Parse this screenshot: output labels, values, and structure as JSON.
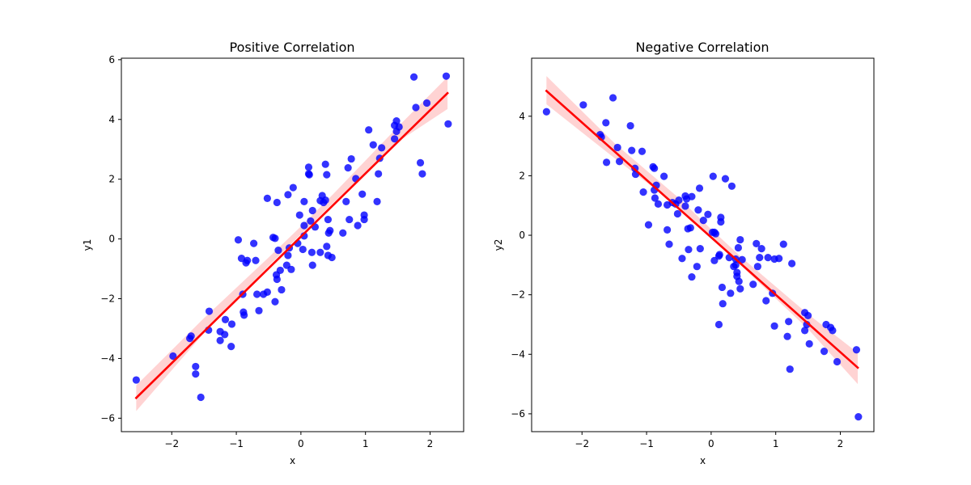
{
  "chart_data": [
    {
      "type": "scatter",
      "title": "Positive Correlation",
      "xlabel": "x",
      "ylabel": "y1",
      "xlim": [
        -2.78,
        2.52
      ],
      "ylim": [
        -6.45,
        6.05
      ],
      "xticks": [
        -2,
        -1,
        0,
        1,
        2
      ],
      "yticks": [
        -6,
        -4,
        -2,
        0,
        2,
        4,
        6
      ],
      "point_color": "#0000ff",
      "line_color": "#ff0000",
      "ci_color": "#ffc0c0",
      "regression_line": {
        "x": [
          -2.55,
          2.27
        ],
        "y": [
          -5.32,
          4.88
        ]
      },
      "confidence_band": [
        {
          "x": -2.55,
          "lo": -5.76,
          "hi": -4.9
        },
        {
          "x": -1.5,
          "lo": -3.15,
          "hi": -2.65
        },
        {
          "x": -0.5,
          "lo": -0.9,
          "hi": -0.62
        },
        {
          "x": 0.0,
          "lo": 0.15,
          "hi": 0.42
        },
        {
          "x": 0.5,
          "lo": 1.2,
          "hi": 1.5
        },
        {
          "x": 1.5,
          "lo": 3.25,
          "hi": 3.75
        },
        {
          "x": 2.27,
          "lo": 4.35,
          "hi": 5.42
        }
      ],
      "points": [
        [
          -2.55,
          -4.72
        ],
        [
          -1.98,
          -3.92
        ],
        [
          -1.72,
          -3.33
        ],
        [
          -1.7,
          -3.25
        ],
        [
          -1.63,
          -4.27
        ],
        [
          -1.63,
          -4.52
        ],
        [
          -1.55,
          -5.3
        ],
        [
          -1.43,
          -3.05
        ],
        [
          -1.42,
          -2.42
        ],
        [
          -1.25,
          -3.4
        ],
        [
          -1.25,
          -3.1
        ],
        [
          -1.18,
          -3.2
        ],
        [
          -1.17,
          -2.7
        ],
        [
          -1.08,
          -3.6
        ],
        [
          -1.07,
          -2.85
        ],
        [
          -0.97,
          -0.03
        ],
        [
          -0.92,
          -0.65
        ],
        [
          -0.9,
          -1.85
        ],
        [
          -0.89,
          -2.45
        ],
        [
          -0.88,
          -2.55
        ],
        [
          -0.85,
          -0.8
        ],
        [
          -0.83,
          -0.72
        ],
        [
          -0.73,
          -0.15
        ],
        [
          -0.7,
          -0.72
        ],
        [
          -0.68,
          -1.85
        ],
        [
          -0.65,
          -2.4
        ],
        [
          -0.58,
          -1.85
        ],
        [
          -0.52,
          -1.78
        ],
        [
          -0.52,
          1.36
        ],
        [
          -0.43,
          0.05
        ],
        [
          -0.4,
          0.02
        ],
        [
          -0.4,
          -2.1
        ],
        [
          -0.38,
          -1.2
        ],
        [
          -0.37,
          -1.35
        ],
        [
          -0.37,
          1.22
        ],
        [
          -0.35,
          -0.38
        ],
        [
          -0.32,
          -1.05
        ],
        [
          -0.3,
          -1.7
        ],
        [
          -0.22,
          -0.88
        ],
        [
          -0.2,
          -0.55
        ],
        [
          -0.2,
          1.48
        ],
        [
          -0.18,
          -0.3
        ],
        [
          -0.15,
          -1.02
        ],
        [
          -0.12,
          1.72
        ],
        [
          -0.05,
          -0.15
        ],
        [
          -0.02,
          0.8
        ],
        [
          0.03,
          -0.35
        ],
        [
          0.05,
          0.1
        ],
        [
          0.05,
          1.25
        ],
        [
          0.05,
          0.45
        ],
        [
          0.12,
          2.4
        ],
        [
          0.12,
          2.18
        ],
        [
          0.13,
          2.15
        ],
        [
          0.15,
          0.6
        ],
        [
          0.17,
          -0.45
        ],
        [
          0.18,
          0.95
        ],
        [
          0.18,
          -0.88
        ],
        [
          0.22,
          0.4
        ],
        [
          0.3,
          1.28
        ],
        [
          0.3,
          -0.45
        ],
        [
          0.33,
          1.45
        ],
        [
          0.35,
          1.22
        ],
        [
          0.38,
          1.3
        ],
        [
          0.38,
          2.5
        ],
        [
          0.4,
          -0.25
        ],
        [
          0.4,
          2.15
        ],
        [
          0.42,
          -0.55
        ],
        [
          0.42,
          0.65
        ],
        [
          0.43,
          0.2
        ],
        [
          0.45,
          0.28
        ],
        [
          0.48,
          -0.62
        ],
        [
          0.65,
          0.2
        ],
        [
          0.7,
          1.25
        ],
        [
          0.73,
          2.38
        ],
        [
          0.75,
          0.65
        ],
        [
          0.78,
          2.68
        ],
        [
          0.85,
          2.02
        ],
        [
          0.88,
          0.45
        ],
        [
          0.95,
          1.5
        ],
        [
          0.98,
          0.8
        ],
        [
          0.98,
          0.65
        ],
        [
          1.05,
          3.65
        ],
        [
          1.12,
          3.15
        ],
        [
          1.18,
          1.25
        ],
        [
          1.2,
          2.18
        ],
        [
          1.22,
          2.7
        ],
        [
          1.25,
          3.05
        ],
        [
          1.45,
          3.35
        ],
        [
          1.45,
          3.8
        ],
        [
          1.48,
          3.95
        ],
        [
          1.48,
          3.6
        ],
        [
          1.52,
          3.75
        ],
        [
          1.75,
          5.42
        ],
        [
          1.78,
          4.4
        ],
        [
          1.85,
          2.55
        ],
        [
          1.88,
          2.18
        ],
        [
          1.95,
          4.55
        ],
        [
          2.25,
          5.45
        ],
        [
          2.28,
          3.85
        ]
      ]
    },
    {
      "type": "scatter",
      "title": "Negative Correlation",
      "xlabel": "x",
      "ylabel": "y2",
      "xlim": [
        -2.78,
        2.52
      ],
      "ylim": [
        -6.6,
        5.95
      ],
      "xticks": [
        -2,
        -1,
        0,
        1,
        2
      ],
      "yticks": [
        -6,
        -4,
        -2,
        0,
        2,
        4
      ],
      "point_color": "#0000ff",
      "line_color": "#ff0000",
      "ci_color": "#ffc0c0",
      "regression_line": {
        "x": [
          -2.55,
          2.27
        ],
        "y": [
          4.85,
          -4.45
        ]
      },
      "confidence_band": [
        {
          "x": -2.55,
          "lo": 4.4,
          "hi": 5.35
        },
        {
          "x": -1.5,
          "lo": 2.6,
          "hi": 3.1
        },
        {
          "x": -0.5,
          "lo": 0.95,
          "hi": 1.25
        },
        {
          "x": 0.0,
          "lo": -0.1,
          "hi": 0.2
        },
        {
          "x": 0.5,
          "lo": -1.1,
          "hi": -0.8
        },
        {
          "x": 1.5,
          "lo": -3.15,
          "hi": -2.65
        },
        {
          "x": 2.27,
          "lo": -5.0,
          "hi": -3.95
        }
      ],
      "points": [
        [
          -2.55,
          4.15
        ],
        [
          -1.98,
          4.38
        ],
        [
          -1.72,
          3.38
        ],
        [
          -1.7,
          3.3
        ],
        [
          -1.63,
          3.78
        ],
        [
          -1.62,
          2.45
        ],
        [
          -1.52,
          4.62
        ],
        [
          -1.45,
          2.95
        ],
        [
          -1.42,
          2.48
        ],
        [
          -1.25,
          3.68
        ],
        [
          -1.23,
          2.85
        ],
        [
          -1.18,
          2.25
        ],
        [
          -1.17,
          2.05
        ],
        [
          -1.07,
          2.82
        ],
        [
          -1.05,
          1.45
        ],
        [
          -0.97,
          0.35
        ],
        [
          -0.9,
          2.3
        ],
        [
          -0.88,
          2.25
        ],
        [
          -0.88,
          1.52
        ],
        [
          -0.87,
          1.25
        ],
        [
          -0.85,
          1.68
        ],
        [
          -0.82,
          1.05
        ],
        [
          -0.73,
          1.98
        ],
        [
          -0.68,
          0.18
        ],
        [
          -0.68,
          1.02
        ],
        [
          -0.65,
          -0.3
        ],
        [
          -0.6,
          1.1
        ],
        [
          -0.55,
          1.05
        ],
        [
          -0.52,
          0.72
        ],
        [
          -0.5,
          1.18
        ],
        [
          -0.45,
          -0.78
        ],
        [
          -0.4,
          1.32
        ],
        [
          -0.4,
          0.98
        ],
        [
          -0.38,
          1.22
        ],
        [
          -0.36,
          0.22
        ],
        [
          -0.35,
          -0.48
        ],
        [
          -0.32,
          0.25
        ],
        [
          -0.3,
          -1.4
        ],
        [
          -0.3,
          1.3
        ],
        [
          -0.22,
          -1.05
        ],
        [
          -0.2,
          0.85
        ],
        [
          -0.18,
          1.58
        ],
        [
          -0.17,
          -0.45
        ],
        [
          -0.12,
          0.5
        ],
        [
          -0.05,
          0.7
        ],
        [
          0.02,
          0.1
        ],
        [
          0.03,
          1.98
        ],
        [
          0.05,
          0.1
        ],
        [
          0.05,
          -0.85
        ],
        [
          0.07,
          0.05
        ],
        [
          0.12,
          -0.7
        ],
        [
          0.12,
          -3.0
        ],
        [
          0.13,
          -0.65
        ],
        [
          0.15,
          0.6
        ],
        [
          0.15,
          0.45
        ],
        [
          0.17,
          -1.75
        ],
        [
          0.18,
          -2.3
        ],
        [
          0.22,
          1.9
        ],
        [
          0.28,
          -0.75
        ],
        [
          0.3,
          -1.95
        ],
        [
          0.32,
          1.65
        ],
        [
          0.35,
          -1.05
        ],
        [
          0.38,
          -1.0
        ],
        [
          0.38,
          -0.8
        ],
        [
          0.4,
          -1.25
        ],
        [
          0.4,
          -1.38
        ],
        [
          0.42,
          -0.42
        ],
        [
          0.43,
          -1.55
        ],
        [
          0.45,
          -0.15
        ],
        [
          0.45,
          -1.8
        ],
        [
          0.48,
          -0.82
        ],
        [
          0.65,
          -1.65
        ],
        [
          0.7,
          -0.28
        ],
        [
          0.72,
          -1.05
        ],
        [
          0.75,
          -0.75
        ],
        [
          0.78,
          -0.45
        ],
        [
          0.85,
          -2.2
        ],
        [
          0.88,
          -0.75
        ],
        [
          0.95,
          -1.95
        ],
        [
          0.98,
          -0.8
        ],
        [
          0.98,
          -3.05
        ],
        [
          1.05,
          -0.78
        ],
        [
          1.12,
          -0.3
        ],
        [
          1.18,
          -3.4
        ],
        [
          1.2,
          -2.9
        ],
        [
          1.22,
          -4.5
        ],
        [
          1.25,
          -0.95
        ],
        [
          1.45,
          -2.6
        ],
        [
          1.45,
          -3.2
        ],
        [
          1.48,
          -3.0
        ],
        [
          1.5,
          -2.7
        ],
        [
          1.52,
          -3.65
        ],
        [
          1.75,
          -3.9
        ],
        [
          1.78,
          -3.0
        ],
        [
          1.85,
          -3.1
        ],
        [
          1.88,
          -3.2
        ],
        [
          1.95,
          -4.25
        ],
        [
          2.25,
          -3.85
        ],
        [
          2.28,
          -6.1
        ]
      ]
    }
  ]
}
